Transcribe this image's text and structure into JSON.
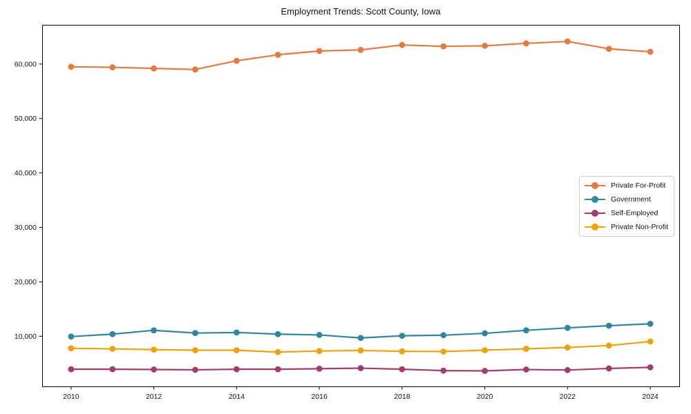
{
  "chart_data": {
    "type": "line",
    "title": "Employment Trends: Scott County, Iowa",
    "xlabel": "",
    "ylabel": "",
    "grid": false,
    "legend_position": "center-right",
    "marker": "circle",
    "background": "#ffffff",
    "spine_color": "#000000",
    "tick_label_color": "#111111",
    "xlim": [
      2009.3,
      2024.7
    ],
    "ylim": [
      800,
      67200
    ],
    "xticks": [
      2010,
      2012,
      2014,
      2016,
      2018,
      2020,
      2022,
      2024
    ],
    "xtick_labels": [
      "2010",
      "2012",
      "2014",
      "2016",
      "2018",
      "2020",
      "2022",
      "2024"
    ],
    "yticks": [
      10000,
      20000,
      30000,
      40000,
      50000,
      60000
    ],
    "ytick_labels": [
      "10,000",
      "20,000",
      "30,000",
      "40,000",
      "50,000",
      "60,000"
    ],
    "x": [
      2010,
      2011,
      2012,
      2013,
      2014,
      2015,
      2016,
      2017,
      2018,
      2019,
      2020,
      2021,
      2022,
      2023,
      2024
    ],
    "series": [
      {
        "name": "Private For-Profit",
        "color": "#E8793D",
        "values": [
          59500,
          59400,
          59200,
          59000,
          60600,
          61700,
          62400,
          62600,
          63500,
          63250,
          63350,
          63800,
          64150,
          62800,
          62250
        ]
      },
      {
        "name": "Government",
        "color": "#2E86A1",
        "values": [
          9950,
          10400,
          11100,
          10600,
          10700,
          10400,
          10250,
          9700,
          10100,
          10200,
          10550,
          11100,
          11550,
          11950,
          12300
        ]
      },
      {
        "name": "Self-Employed",
        "color": "#A23B72",
        "values": [
          3950,
          3950,
          3900,
          3850,
          3950,
          3950,
          4050,
          4150,
          3950,
          3700,
          3650,
          3900,
          3800,
          4100,
          4300
        ]
      },
      {
        "name": "Private Non-Profit",
        "color": "#F0A202",
        "values": [
          7800,
          7700,
          7550,
          7450,
          7450,
          7100,
          7300,
          7400,
          7250,
          7200,
          7450,
          7700,
          7950,
          8300,
          9050
        ]
      }
    ]
  }
}
